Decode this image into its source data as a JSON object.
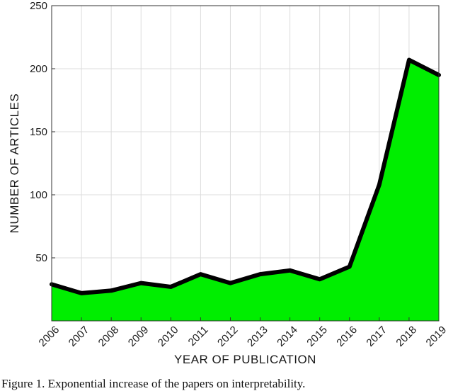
{
  "figure": {
    "caption": "Figure 1. Exponential increase of the papers on interpretability."
  },
  "chart_data": {
    "type": "area",
    "xlabel": "YEAR OF PUBLICATION",
    "ylabel": "NUMBER OF ARTICLES",
    "x": [
      2006,
      2007,
      2008,
      2009,
      2010,
      2011,
      2012,
      2013,
      2014,
      2015,
      2016,
      2017,
      2018,
      2019
    ],
    "series": [
      {
        "values": [
          29,
          22,
          24,
          30,
          27,
          37,
          30,
          37,
          40,
          33,
          43,
          108,
          207,
          195
        ]
      }
    ],
    "xlim": [
      2006,
      2019
    ],
    "ylim": [
      0,
      250
    ],
    "yticks": [
      50,
      100,
      150,
      200,
      250
    ],
    "xticks": [
      "2006",
      "2007",
      "2008",
      "2009",
      "2010",
      "2011",
      "2012",
      "2013",
      "2014",
      "2015",
      "2016",
      "2017",
      "2018",
      "2019"
    ],
    "fill_color": "#00ee00",
    "line_color": "#000000",
    "grid": true
  }
}
